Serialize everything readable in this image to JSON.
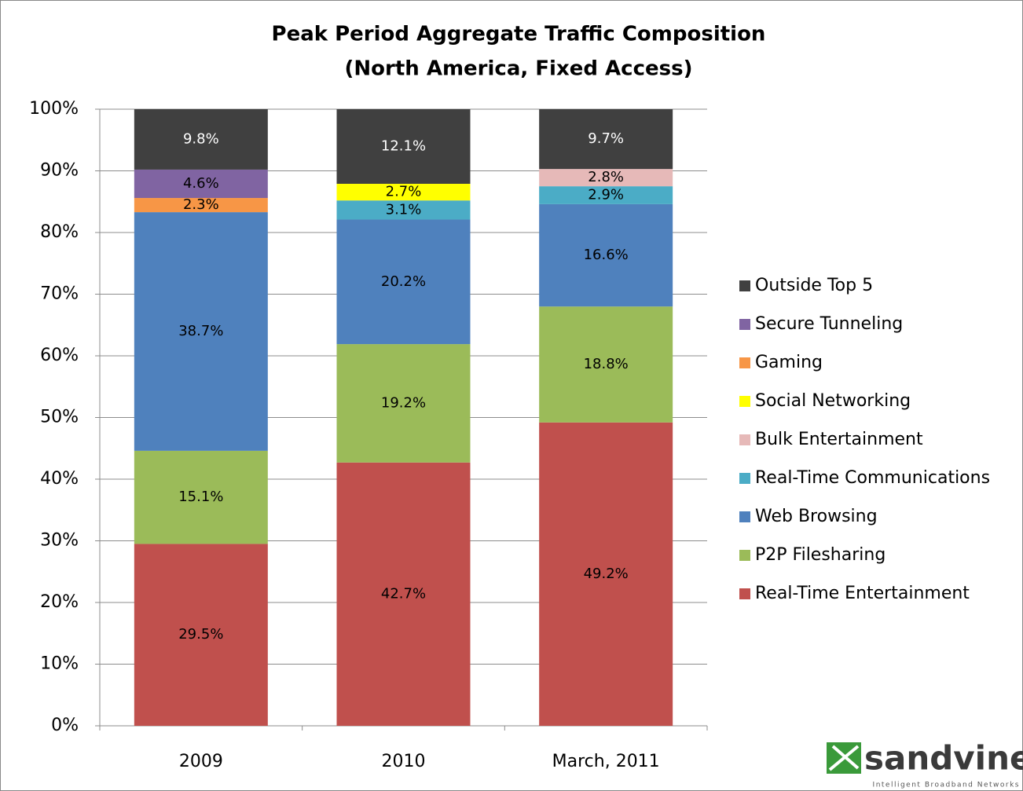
{
  "chart_data": {
    "type": "stacked_bar",
    "title": "Peak Period Aggregate Traffic Composition",
    "subtitle": "(North America, Fixed Access)",
    "categories": [
      "2009",
      "2010",
      "March, 2011"
    ],
    "series": [
      {
        "name": "Real-Time Entertainment",
        "color": "#c0504d",
        "values": [
          29.5,
          42.7,
          49.2
        ],
        "value_labels": [
          "29.5%",
          "42.7%",
          "49.2%"
        ]
      },
      {
        "name": "P2P Filesharing",
        "color": "#9bbb59",
        "values": [
          15.1,
          19.2,
          18.8
        ],
        "value_labels": [
          "15.1%",
          "19.2%",
          "18.8%"
        ]
      },
      {
        "name": "Web Browsing",
        "color": "#4f81bd",
        "values": [
          38.7,
          20.2,
          16.6
        ],
        "value_labels": [
          "38.7%",
          "20.2%",
          "16.6%"
        ]
      },
      {
        "name": "Real-Time Communications",
        "color": "#4bacc6",
        "values": [
          null,
          3.1,
          2.9
        ],
        "value_labels": [
          null,
          "3.1%",
          "2.9%"
        ]
      },
      {
        "name": "Bulk Entertainment",
        "color": "#e6b9b8",
        "values": [
          null,
          null,
          2.8
        ],
        "value_labels": [
          null,
          null,
          "2.8%"
        ]
      },
      {
        "name": "Social Networking",
        "color": "#ffff00",
        "values": [
          null,
          2.7,
          null
        ],
        "value_labels": [
          null,
          "2.7%",
          null
        ]
      },
      {
        "name": "Gaming",
        "color": "#f79646",
        "values": [
          2.3,
          null,
          null
        ],
        "value_labels": [
          "2.3%",
          null,
          null
        ]
      },
      {
        "name": "Secure Tunneling",
        "color": "#8064a2",
        "values": [
          4.6,
          null,
          null
        ],
        "value_labels": [
          "4.6%",
          null,
          null
        ]
      },
      {
        "name": "Outside Top 5",
        "color": "#404040",
        "values": [
          9.8,
          12.1,
          9.7
        ],
        "value_labels": [
          "9.8%",
          "12.1%",
          "9.7%"
        ]
      }
    ],
    "ylim": [
      0,
      100
    ],
    "yticks": [
      {
        "value": 0,
        "label": "0%"
      },
      {
        "value": 10,
        "label": "10%"
      },
      {
        "value": 20,
        "label": "20%"
      },
      {
        "value": 30,
        "label": "30%"
      },
      {
        "value": 40,
        "label": "40%"
      },
      {
        "value": 50,
        "label": "50%"
      },
      {
        "value": 60,
        "label": "60%"
      },
      {
        "value": 70,
        "label": "70%"
      },
      {
        "value": 80,
        "label": "80%"
      },
      {
        "value": 90,
        "label": "90%"
      },
      {
        "value": 100,
        "label": "100%"
      }
    ],
    "grid": true,
    "legend": "right"
  },
  "logo": {
    "name": "sandvine",
    "tagline": "Intelligent Broadband Networks"
  }
}
